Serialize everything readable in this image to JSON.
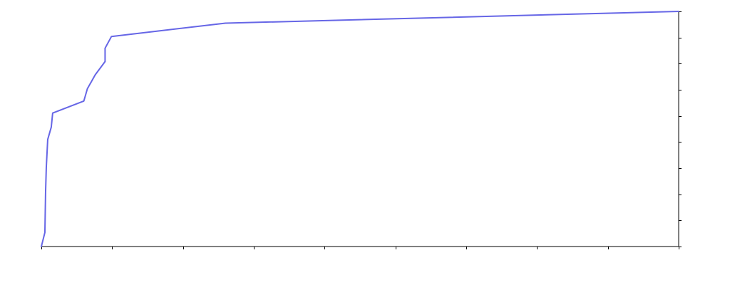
{
  "chart_data": {
    "type": "line",
    "title": "",
    "xlabel": "",
    "ylabel": "",
    "xlim": [
      0,
      9
    ],
    "ylim": [
      0,
      9
    ],
    "x_ticks": [
      0,
      1,
      2,
      3,
      4,
      5,
      6,
      7,
      8,
      9
    ],
    "y_ticks": [
      0,
      1,
      2,
      3,
      4,
      5,
      6,
      7,
      8,
      9
    ],
    "y_axis_side": "right",
    "grid": false,
    "legend": "none",
    "series": [
      {
        "color": "#6666e6",
        "x": [
          0.0,
          0.05,
          0.06,
          0.07,
          0.09,
          0.14,
          0.16,
          0.6,
          0.65,
          0.76,
          0.9,
          0.9,
          0.99,
          2.6,
          9.0
        ],
        "y": [
          0.0,
          0.54,
          2.1,
          3.03,
          4.1,
          4.57,
          5.11,
          5.57,
          6.04,
          6.57,
          7.08,
          7.59,
          8.04,
          8.55,
          9.0
        ]
      }
    ]
  }
}
